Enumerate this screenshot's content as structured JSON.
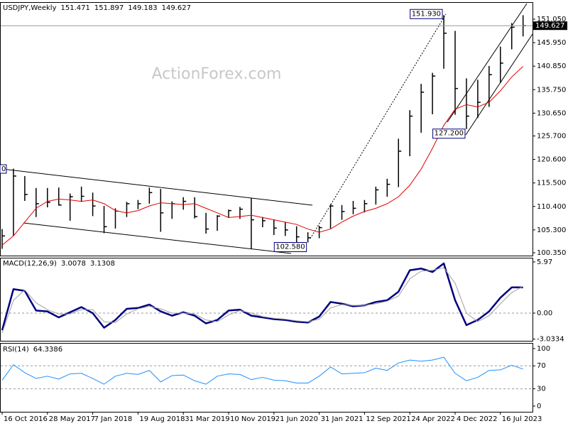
{
  "watermark": "ActionForex.com",
  "edge_label": "0",
  "chart_data": [
    {
      "type": "ohlc",
      "title": "USDJPY,Weekly",
      "header_values": [
        151.471,
        151.897,
        149.183,
        149.627
      ],
      "categories": [
        "16 Oct 2016",
        null,
        null,
        null,
        "28 May 2017",
        null,
        null,
        null,
        "7 Jan 2018",
        null,
        null,
        null,
        "19 Aug 2018",
        null,
        null,
        null,
        "31 Mar 2019",
        null,
        null,
        null,
        "10 Nov 2019",
        null,
        null,
        null,
        "21 Jun 2020",
        null,
        null,
        null,
        "31 Jan 2021",
        null,
        null,
        null,
        "12 Sep 2021",
        null,
        null,
        null,
        "24 Apr 2022",
        null,
        null,
        null,
        "4 Dec 2022",
        null,
        null,
        null,
        "16 Jul 2023",
        null,
        null
      ],
      "high": [
        105.5,
        118.6,
        117,
        114.4,
        114.4,
        114.5,
        113.2,
        114.7,
        113.4,
        110.5,
        110,
        111.4,
        111.8,
        114.5,
        114.2,
        111.5,
        112.4,
        112.4,
        109,
        108.5,
        109.7,
        110.3,
        112.2,
        108.1,
        107.6,
        107,
        106.1,
        104.8,
        106.2,
        110.9,
        110.7,
        111.6,
        111.8,
        114.7,
        116.4,
        125.1,
        131.3,
        137,
        139.4,
        151.93,
        148.5,
        138.2,
        137.9,
        140.9,
        145.1,
        150.2,
        151.9
      ],
      "low": [
        101.2,
        104,
        111.6,
        108.1,
        110.2,
        110.6,
        107.3,
        111.4,
        108.3,
        104.6,
        105.6,
        108.1,
        109.8,
        111,
        104.9,
        107.7,
        109.7,
        107.8,
        104.5,
        105.1,
        107.9,
        107.7,
        101.2,
        105.9,
        104.2,
        104,
        102.6,
        102.58,
        103.5,
        105.6,
        107.5,
        108.7,
        109.1,
        110.8,
        112.5,
        114.6,
        121.3,
        126.4,
        130.4,
        140.3,
        130.3,
        127.2,
        129.6,
        132,
        137.2,
        144.5,
        147.3
      ],
      "close": [
        104,
        117,
        113,
        111,
        111.3,
        110.7,
        112.5,
        112.6,
        110.5,
        106,
        109.4,
        111,
        111,
        113.4,
        109,
        111,
        111.5,
        108.2,
        105.5,
        108.3,
        109.5,
        109.8,
        107.5,
        107.3,
        105.7,
        105.3,
        103.8,
        103.6,
        105.8,
        110.5,
        109.3,
        110,
        111,
        114,
        115.2,
        122.4,
        130,
        135.2,
        138.7,
        148,
        136,
        130,
        133,
        139,
        141.5,
        149.3,
        149.627
      ],
      "color": "#000000",
      "ma": {
        "color": "#e00000",
        "values": [
          102,
          104,
          107,
          110,
          111.5,
          112,
          111.8,
          111.5,
          111.8,
          111,
          109.5,
          109,
          109.5,
          110.5,
          111.2,
          111,
          110.8,
          111,
          110,
          109,
          108,
          108.2,
          108.5,
          108,
          107.5,
          107,
          106.5,
          105.5,
          104.8,
          105.5,
          107,
          108.3,
          109.3,
          110,
          111,
          112.5,
          115,
          118.5,
          123,
          128,
          131.5,
          132.5,
          132,
          133,
          135.5,
          138.5,
          140.8
        ]
      },
      "last": 149.627,
      "annotations": [
        {
          "label": "151.930",
          "value": 151.93
        },
        {
          "label": "127.200",
          "value": 127.2
        },
        {
          "label": "102.580",
          "value": 102.58
        }
      ],
      "ylim": [
        99.73,
        154.59
      ],
      "yticks": [
        {
          "value": 151.05,
          "label": "151.050"
        },
        {
          "value": 145.95,
          "label": "145.950"
        },
        {
          "value": 140.85,
          "label": "140.850"
        },
        {
          "value": 135.75,
          "label": "135.750"
        },
        {
          "value": 130.65,
          "label": "130.650"
        },
        {
          "value": 125.7,
          "label": "125.700"
        },
        {
          "value": 120.6,
          "label": "120.600"
        },
        {
          "value": 115.5,
          "label": "115.500"
        },
        {
          "value": 110.4,
          "label": "110.400"
        },
        {
          "value": 105.3,
          "label": "105.300"
        },
        {
          "value": 100.35,
          "label": "100.350"
        }
      ]
    },
    {
      "type": "line",
      "title": "MACD(12,26,9)",
      "header_values": [
        3.0078,
        3.1308
      ],
      "series": [
        {
          "color": "#00007f",
          "width": 2.5,
          "values": [
            -2,
            2.8,
            2.6,
            0.3,
            0.2,
            -0.5,
            0.1,
            0.7,
            0,
            -1.7,
            -0.8,
            0.5,
            0.6,
            1,
            0.2,
            -0.3,
            0.1,
            -0.3,
            -1.2,
            -0.8,
            0.3,
            0.4,
            -0.3,
            -0.5,
            -0.7,
            -0.8,
            -1,
            -1.1,
            -0.4,
            1.3,
            1.1,
            0.8,
            0.9,
            1.3,
            1.5,
            2.5,
            5,
            5.2,
            4.8,
            5.8,
            1.5,
            -1.4,
            -0.8,
            0.2,
            1.8,
            3,
            3.0078
          ]
        },
        {
          "color": "#a0a0a0",
          "width": 1,
          "values": [
            -2.3,
            1.5,
            2.7,
            1.2,
            0.4,
            -0.1,
            -0.1,
            0.4,
            0.4,
            -1,
            -1.1,
            -0.1,
            0.5,
            0.8,
            0.5,
            0,
            0,
            -0.1,
            -0.8,
            -1,
            -0.2,
            0.3,
            0,
            -0.4,
            -0.6,
            -0.7,
            -0.9,
            -1,
            -0.7,
            0.6,
            1,
            0.9,
            0.9,
            1.1,
            1.4,
            2,
            4,
            4.9,
            5,
            5.3,
            3.5,
            0,
            -1,
            -0.3,
            1.1,
            2.4,
            3.1308
          ]
        }
      ],
      "levels": [
        0
      ],
      "ylim": [
        -3.23,
        6.38
      ],
      "yticks": [
        5.97,
        {
          "value": 0,
          "label": "0.00"
        },
        -3.0334
      ]
    },
    {
      "type": "line",
      "title": "RSI(14)",
      "header_values": [
        64.3386
      ],
      "series": [
        {
          "color": "#1e90ff",
          "width": 1,
          "values": [
            45,
            72,
            58,
            48,
            52,
            47,
            56,
            57,
            48,
            38,
            52,
            57,
            55,
            62,
            42,
            53,
            54,
            44,
            38,
            52,
            56,
            55,
            46,
            50,
            45,
            44,
            40,
            40,
            52,
            68,
            56,
            57,
            58,
            66,
            62,
            75,
            80,
            78,
            80,
            85,
            57,
            44,
            50,
            62,
            63,
            71,
            64.3386
          ]
        }
      ],
      "levels": [
        70,
        30
      ],
      "ylim": [
        -10,
        108.6
      ],
      "yticks": [
        100,
        70,
        30,
        0
      ]
    }
  ]
}
